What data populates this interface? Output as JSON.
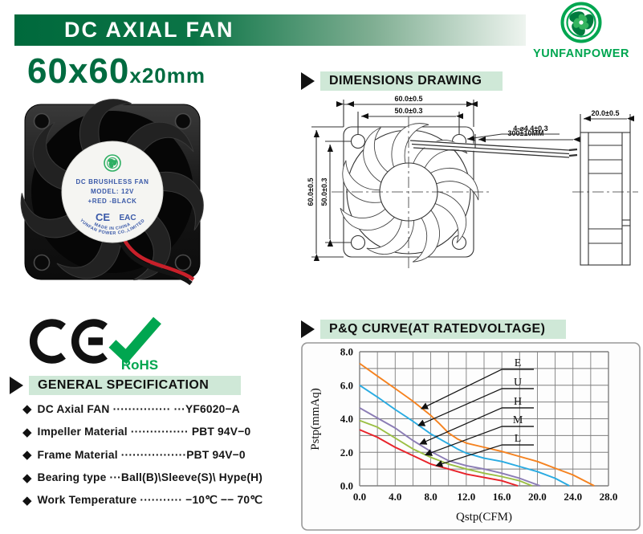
{
  "header": {
    "banner_title": "DC AXIAL FAN",
    "brand": "YUNFANPOWER"
  },
  "product": {
    "size_main": "60x60",
    "size_sub": "x20mm"
  },
  "sections": {
    "dimensions": "DIMENSIONS DRAWING",
    "specification": "GENERAL SPECIFICATION",
    "pq_curve": "P&Q CURVE(AT RATEDVOLTAGE)"
  },
  "dim": {
    "top_outer": "60.0±0.5",
    "top_inner": "50.0±0.3",
    "left_outer": "60.0±0.5",
    "left_inner": "50.0±0.3",
    "holes": "4-⌀4.4±0.3",
    "wire": "300±10MM",
    "depth": "20.0±0.5"
  },
  "fan_label": {
    "line1": "DC BRUSHLESS FAN",
    "line2": "MODEL: 12V",
    "line3": "+RED -BLACK",
    "ce": "CE",
    "eac": "EAC",
    "arc_outer": "YUNFAN POWER CO.,LIMITED",
    "arc_inner": "MADE IN CHINA"
  },
  "certifications": {
    "ce": "CE",
    "rohs": "RoHS"
  },
  "spec": {
    "bullet": "◆",
    "items": [
      "DC Axial FAN ··············· ···YF6020−A",
      "Impeller Material ··············· PBT 94V−0",
      "Frame Material ·················PBT 94V−0",
      "Bearing type ···Ball(B)\\Sleeve(S)\\ Hype(H)",
      "Work Temperature ··········· −10℃ −− 70℃"
    ]
  },
  "chart_data": {
    "type": "line",
    "title": "P&Q CURVE(AT RATEDVOLTAGE)",
    "xlabel": "Qstp(CFM)",
    "ylabel": "Pstp(mmAq)",
    "xlim": [
      0,
      28
    ],
    "ylim": [
      0,
      8
    ],
    "xticks": [
      "0.0",
      "4.0",
      "8.0",
      "12.0",
      "16.0",
      "20.0",
      "24.0",
      "28.0"
    ],
    "yticks": [
      "0.0",
      "2.0",
      "4.0",
      "6.0",
      "8.0"
    ],
    "grid": {
      "x_step": 2,
      "y_step": 1,
      "color": "#7f7f7f",
      "visible": true
    },
    "legend_position": "inline-callouts",
    "series": [
      {
        "name": "E",
        "color": "#f5821f",
        "label_x": 16.0,
        "label_y": 6.95,
        "arrow_to": [
          6.95,
          4.6
        ],
        "points": [
          [
            0,
            7.3
          ],
          [
            2,
            6.55
          ],
          [
            4,
            5.8
          ],
          [
            6,
            5.05
          ],
          [
            8,
            4.2
          ],
          [
            9,
            3.7
          ],
          [
            10,
            3.15
          ],
          [
            11,
            2.8
          ],
          [
            12,
            2.55
          ],
          [
            14,
            2.3
          ],
          [
            16,
            2.05
          ],
          [
            18,
            1.75
          ],
          [
            20,
            1.45
          ],
          [
            22,
            1.05
          ],
          [
            24,
            0.65
          ],
          [
            26.4,
            0
          ]
        ]
      },
      {
        "name": "U",
        "color": "#29abe2",
        "label_x": 16.0,
        "label_y": 5.8,
        "arrow_to": [
          6.6,
          3.6
        ],
        "points": [
          [
            0,
            6.0
          ],
          [
            2,
            5.3
          ],
          [
            4,
            4.55
          ],
          [
            6,
            3.85
          ],
          [
            8,
            3.1
          ],
          [
            10,
            2.5
          ],
          [
            11,
            2.2
          ],
          [
            12,
            1.95
          ],
          [
            14,
            1.65
          ],
          [
            16,
            1.45
          ],
          [
            18,
            1.15
          ],
          [
            20,
            0.85
          ],
          [
            22,
            0.45
          ],
          [
            23.6,
            0
          ]
        ]
      },
      {
        "name": "H",
        "color": "#8b7cb5",
        "label_x": 16.0,
        "label_y": 4.65,
        "arrow_to": [
          6.8,
          2.5
        ],
        "points": [
          [
            0,
            4.65
          ],
          [
            2,
            4.05
          ],
          [
            4,
            3.45
          ],
          [
            6,
            2.7
          ],
          [
            8,
            2.05
          ],
          [
            10,
            1.5
          ],
          [
            12,
            1.2
          ],
          [
            14,
            1.0
          ],
          [
            16,
            0.75
          ],
          [
            18,
            0.45
          ],
          [
            20.3,
            0
          ]
        ]
      },
      {
        "name": "M",
        "color": "#9bbf44",
        "label_x": 16.0,
        "label_y": 3.54,
        "arrow_to": [
          7.4,
          1.85
        ],
        "points": [
          [
            0,
            3.9
          ],
          [
            2,
            3.5
          ],
          [
            4,
            2.85
          ],
          [
            6,
            2.2
          ],
          [
            8,
            1.7
          ],
          [
            10,
            1.3
          ],
          [
            12,
            1.0
          ],
          [
            14,
            0.75
          ],
          [
            16,
            0.55
          ],
          [
            18,
            0.3
          ],
          [
            19.4,
            0
          ]
        ]
      },
      {
        "name": "L",
        "color": "#e8232a",
        "label_x": 16.0,
        "label_y": 2.44,
        "arrow_to": [
          8.6,
          1.2
        ],
        "points": [
          [
            0,
            3.35
          ],
          [
            2,
            2.9
          ],
          [
            4,
            2.3
          ],
          [
            6,
            1.8
          ],
          [
            8,
            1.3
          ],
          [
            10,
            1.0
          ],
          [
            12,
            0.7
          ],
          [
            14,
            0.5
          ],
          [
            16,
            0.3
          ],
          [
            17.8,
            0
          ]
        ]
      }
    ]
  }
}
